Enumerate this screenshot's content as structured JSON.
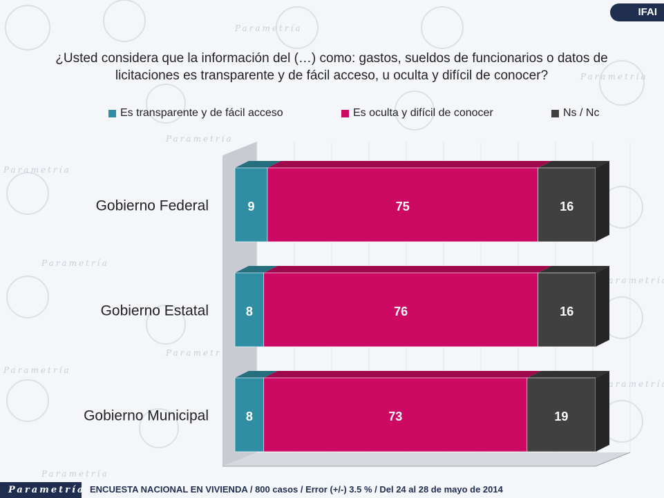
{
  "header": {
    "tag": "IFAI"
  },
  "question": "¿Usted considera que la información del (…) como: gastos, sueldos de funcionarios o datos de licitaciones es transparente y de fácil acceso, u oculta y difícil de conocer?",
  "chart_data": {
    "type": "bar",
    "orientation": "horizontal",
    "stacked": true,
    "title": "¿Usted considera que la información del (…) como: gastos, sueldos de funcionarios o datos de licitaciones es transparente y de fácil acceso, u oculta y difícil de conocer?",
    "categories": [
      "Gobierno Federal",
      "Gobierno Estatal",
      "Gobierno Municipal"
    ],
    "series": [
      {
        "name": "Es transparente y de fácil acceso",
        "values": [
          9,
          8,
          8
        ],
        "color": "#2f8ea3"
      },
      {
        "name": "Es oculta y difícil de conocer",
        "values": [
          75,
          76,
          73
        ],
        "color": "#cc0a63"
      },
      {
        "name": "Ns / Nc",
        "values": [
          16,
          16,
          19
        ],
        "color": "#404040"
      }
    ],
    "xlim": [
      0,
      100
    ],
    "legend_position": "top",
    "data_labels": true
  },
  "footer": {
    "brand": "Parametría",
    "note": "ENCUESTA NACIONAL EN VIVIENDA / 800 casos / Error (+/-) 3.5 % / Del 24 al 28 de mayo de 2014"
  }
}
